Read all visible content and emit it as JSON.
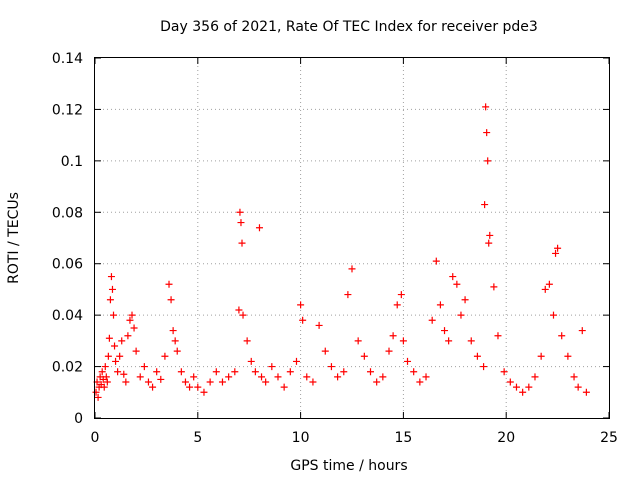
{
  "chart_data": {
    "type": "scatter",
    "title": "Day 356 of 2021, Rate Of TEC Index for receiver pde3",
    "xlabel": "GPS time / hours",
    "ylabel": "ROTI / TECUs",
    "xlim": [
      0,
      25
    ],
    "ylim": [
      0,
      0.14
    ],
    "xticks": [
      0,
      5,
      10,
      15,
      20,
      25
    ],
    "xtick_labels": [
      "0",
      "5",
      "10",
      "15",
      "20",
      "25"
    ],
    "yticks": [
      0,
      0.02,
      0.04,
      0.06,
      0.08,
      0.1,
      0.12,
      0.14
    ],
    "ytick_labels": [
      "0",
      "0.02",
      "0.04",
      "0.06",
      "0.08",
      "0.1",
      "0.12",
      "0.14"
    ],
    "grid": true,
    "marker": "plus",
    "marker_color": "#ff0000",
    "series": [
      {
        "name": "ROTI",
        "x": [
          0.05,
          0.1,
          0.15,
          0.2,
          0.25,
          0.3,
          0.35,
          0.4,
          0.45,
          0.5,
          0.55,
          0.6,
          0.65,
          0.7,
          0.75,
          0.8,
          0.85,
          0.9,
          0.95,
          1.0,
          1.1,
          1.2,
          1.3,
          1.4,
          1.5,
          1.6,
          1.7,
          1.8,
          1.9,
          2.0,
          2.2,
          2.4,
          2.6,
          2.8,
          3.0,
          3.2,
          3.4,
          3.6,
          3.7,
          3.8,
          3.9,
          4.0,
          4.2,
          4.4,
          4.6,
          4.8,
          5.0,
          5.3,
          5.6,
          5.9,
          6.2,
          6.5,
          6.8,
          7.0,
          7.05,
          7.1,
          7.15,
          7.2,
          7.4,
          7.6,
          7.8,
          8.0,
          8.1,
          8.3,
          8.6,
          8.9,
          9.2,
          9.5,
          9.8,
          10.0,
          10.1,
          10.3,
          10.6,
          10.9,
          11.2,
          11.5,
          11.8,
          12.1,
          12.3,
          12.5,
          12.8,
          13.1,
          13.4,
          13.7,
          14.0,
          14.3,
          14.5,
          14.7,
          14.9,
          15.0,
          15.2,
          15.5,
          15.8,
          16.1,
          16.4,
          16.6,
          16.8,
          17.0,
          17.2,
          17.4,
          17.6,
          17.8,
          18.0,
          18.3,
          18.6,
          18.9,
          18.95,
          19.0,
          19.05,
          19.1,
          19.15,
          19.2,
          19.4,
          19.6,
          19.9,
          20.2,
          20.5,
          20.8,
          21.1,
          21.4,
          21.7,
          21.9,
          22.1,
          22.3,
          22.4,
          22.5,
          22.7,
          23.0,
          23.3,
          23.5,
          23.7,
          23.9
        ],
        "y": [
          0.01,
          0.014,
          0.008,
          0.012,
          0.016,
          0.013,
          0.018,
          0.015,
          0.012,
          0.02,
          0.016,
          0.014,
          0.024,
          0.031,
          0.046,
          0.055,
          0.05,
          0.04,
          0.028,
          0.022,
          0.018,
          0.024,
          0.03,
          0.017,
          0.014,
          0.032,
          0.038,
          0.04,
          0.035,
          0.026,
          0.016,
          0.02,
          0.014,
          0.012,
          0.018,
          0.015,
          0.024,
          0.052,
          0.046,
          0.034,
          0.03,
          0.026,
          0.018,
          0.014,
          0.012,
          0.016,
          0.012,
          0.01,
          0.014,
          0.018,
          0.014,
          0.016,
          0.018,
          0.042,
          0.08,
          0.076,
          0.068,
          0.04,
          0.03,
          0.022,
          0.018,
          0.074,
          0.016,
          0.014,
          0.02,
          0.016,
          0.012,
          0.018,
          0.022,
          0.044,
          0.038,
          0.016,
          0.014,
          0.036,
          0.026,
          0.02,
          0.016,
          0.018,
          0.048,
          0.058,
          0.03,
          0.024,
          0.018,
          0.014,
          0.016,
          0.026,
          0.032,
          0.044,
          0.048,
          0.03,
          0.022,
          0.018,
          0.014,
          0.016,
          0.038,
          0.061,
          0.044,
          0.034,
          0.03,
          0.055,
          0.052,
          0.04,
          0.046,
          0.03,
          0.024,
          0.02,
          0.083,
          0.121,
          0.111,
          0.1,
          0.068,
          0.071,
          0.051,
          0.032,
          0.018,
          0.014,
          0.012,
          0.01,
          0.012,
          0.016,
          0.024,
          0.05,
          0.052,
          0.04,
          0.064,
          0.066,
          0.032,
          0.024,
          0.016,
          0.012,
          0.034,
          0.01
        ]
      }
    ]
  }
}
